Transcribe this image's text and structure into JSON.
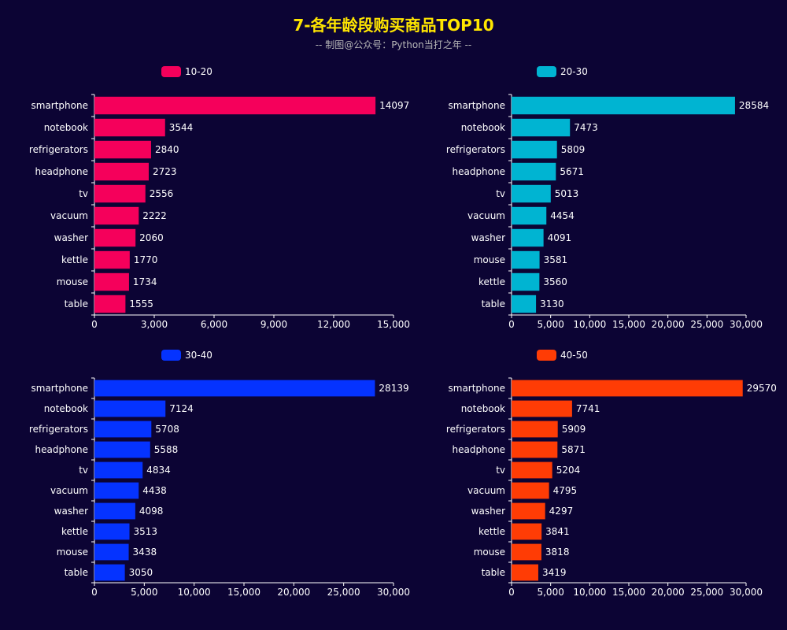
{
  "header": {
    "title": "7-各年龄段购买商品TOP10",
    "subtitle": "-- 制图@公众号：Python当打之年 --"
  },
  "colors": {
    "background": "#0c0434",
    "axis": "#ffffff",
    "label": "#ffffff"
  },
  "chart_data": [
    {
      "type": "bar",
      "orientation": "horizontal",
      "categories": [
        "smartphone",
        "notebook",
        "refrigerators",
        "headphone",
        "tv",
        "vacuum",
        "washer",
        "kettle",
        "mouse",
        "table"
      ],
      "series": [
        {
          "name": "10-20",
          "values": [
            14097,
            3544,
            2840,
            2723,
            2556,
            2222,
            2060,
            1770,
            1734,
            1555
          ],
          "color": "#f5005b"
        }
      ],
      "xlim": [
        0,
        15000
      ],
      "xticks": [
        "0",
        "3,000",
        "6,000",
        "9,000",
        "12,000",
        "15,000"
      ],
      "legend": "top"
    },
    {
      "type": "bar",
      "orientation": "horizontal",
      "categories": [
        "smartphone",
        "notebook",
        "refrigerators",
        "headphone",
        "tv",
        "vacuum",
        "washer",
        "mouse",
        "kettle",
        "table"
      ],
      "series": [
        {
          "name": "20-30",
          "values": [
            28584,
            7473,
            5809,
            5671,
            5013,
            4454,
            4091,
            3581,
            3560,
            3130
          ],
          "color": "#00b4d2"
        }
      ],
      "xlim": [
        0,
        30000
      ],
      "xticks": [
        "0",
        "5,000",
        "10,000",
        "15,000",
        "20,000",
        "25,000",
        "30,000"
      ],
      "legend": "top"
    },
    {
      "type": "bar",
      "orientation": "horizontal",
      "categories": [
        "smartphone",
        "notebook",
        "refrigerators",
        "headphone",
        "tv",
        "vacuum",
        "washer",
        "kettle",
        "mouse",
        "table"
      ],
      "series": [
        {
          "name": "30-40",
          "values": [
            28139,
            7124,
            5708,
            5588,
            4834,
            4438,
            4098,
            3513,
            3438,
            3050
          ],
          "color": "#0533ff"
        }
      ],
      "xlim": [
        0,
        30000
      ],
      "xticks": [
        "0",
        "5,000",
        "10,000",
        "15,000",
        "20,000",
        "25,000",
        "30,000"
      ],
      "legend": "top"
    },
    {
      "type": "bar",
      "orientation": "horizontal",
      "categories": [
        "smartphone",
        "notebook",
        "refrigerators",
        "headphone",
        "tv",
        "vacuum",
        "washer",
        "kettle",
        "mouse",
        "table"
      ],
      "series": [
        {
          "name": "40-50",
          "values": [
            29570,
            7741,
            5909,
            5871,
            5204,
            4795,
            4297,
            3841,
            3818,
            3419
          ],
          "color": "#ff3c05"
        }
      ],
      "xlim": [
        0,
        30000
      ],
      "xticks": [
        "0",
        "5,000",
        "10,000",
        "15,000",
        "20,000",
        "25,000",
        "30,000"
      ],
      "legend": "top"
    }
  ]
}
